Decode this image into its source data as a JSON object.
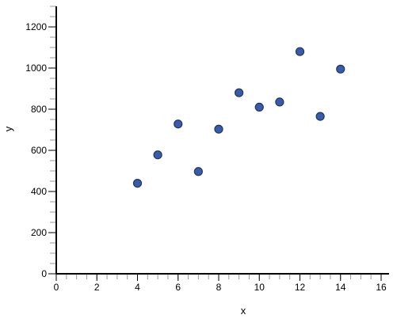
{
  "chart_data": {
    "type": "scatter",
    "title": "",
    "xlabel": "x",
    "ylabel": "y",
    "xlim": [
      0,
      16.4
    ],
    "ylim": [
      0,
      1300
    ],
    "x_ticks": [
      "0",
      "2",
      "4",
      "6",
      "8",
      "10",
      "12",
      "14",
      "16"
    ],
    "y_ticks": [
      "0",
      "200",
      "400",
      "600",
      "800",
      "1000",
      "1200"
    ],
    "grid": false,
    "legend": "none",
    "marker_color": "#3a5ca8",
    "marker_edge_color": "#1f3566",
    "points": [
      {
        "x": 4,
        "y": 440
      },
      {
        "x": 5,
        "y": 578
      },
      {
        "x": 6,
        "y": 728
      },
      {
        "x": 7,
        "y": 497
      },
      {
        "x": 8,
        "y": 703
      },
      {
        "x": 9,
        "y": 880
      },
      {
        "x": 10,
        "y": 810
      },
      {
        "x": 11,
        "y": 835
      },
      {
        "x": 12,
        "y": 1080
      },
      {
        "x": 13,
        "y": 765
      },
      {
        "x": 14,
        "y": 995
      }
    ]
  }
}
